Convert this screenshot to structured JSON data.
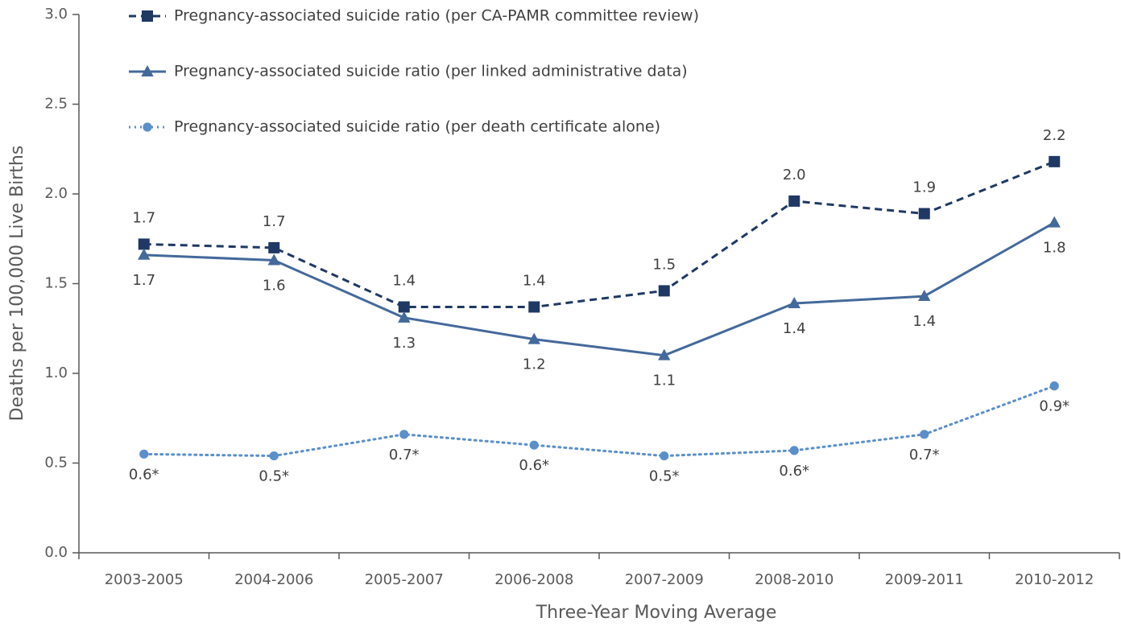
{
  "chart_data": {
    "type": "line",
    "x_label": "Three-Year Moving Average",
    "y_label": "Deaths per 100,000 Live Births",
    "categories": [
      "2003-2005",
      "2004-2006",
      "2005-2007",
      "2006-2008",
      "2007-2009",
      "2008-2010",
      "2009-2011",
      "2010-2012"
    ],
    "ylim": [
      0,
      3
    ],
    "yticks": [
      {
        "value": 0,
        "label": "0.0"
      },
      {
        "value": 0.5,
        "label": "0.5"
      },
      {
        "value": 1,
        "label": "1.0"
      },
      {
        "value": 1.5,
        "label": "1.5"
      },
      {
        "value": 2,
        "label": "2.0"
      },
      {
        "value": 2.5,
        "label": "2.5"
      },
      {
        "value": 3,
        "label": "3.0"
      }
    ],
    "grid": false,
    "legend": "top-left",
    "series": [
      {
        "name": "Pregnancy-associated suicide ratio (per CA-PAMR committee review)",
        "color": "#1f3864",
        "line_style": "dashed",
        "marker": "square",
        "values": [
          1.72,
          1.7,
          1.37,
          1.37,
          1.46,
          1.96,
          1.89,
          2.18
        ],
        "value_labels": [
          "1.7",
          "1.7",
          "1.4",
          "1.4",
          "1.5",
          "2.0",
          "1.9",
          "2.2"
        ]
      },
      {
        "name": "Pregnancy-associated suicide ratio (per linked administrative data)",
        "color": "#44699b",
        "line_style": "solid",
        "marker": "triangle",
        "values": [
          1.66,
          1.63,
          1.31,
          1.19,
          1.1,
          1.39,
          1.43,
          1.84
        ],
        "value_labels": [
          "1.7",
          "1.6",
          "1.3",
          "1.2",
          "1.1",
          "1.4",
          "1.4",
          "1.8"
        ]
      },
      {
        "name": "Pregnancy-associated suicide ratio (per death certificate alone)",
        "color": "#5b8fc9",
        "line_style": "dotted",
        "marker": "circle",
        "values": [
          0.55,
          0.54,
          0.66,
          0.6,
          0.54,
          0.57,
          0.66,
          0.93
        ],
        "value_labels": [
          "0.6*",
          "0.5*",
          "0.7*",
          "0.6*",
          "0.5*",
          "0.6*",
          "0.7*",
          "0.9*"
        ]
      }
    ]
  }
}
